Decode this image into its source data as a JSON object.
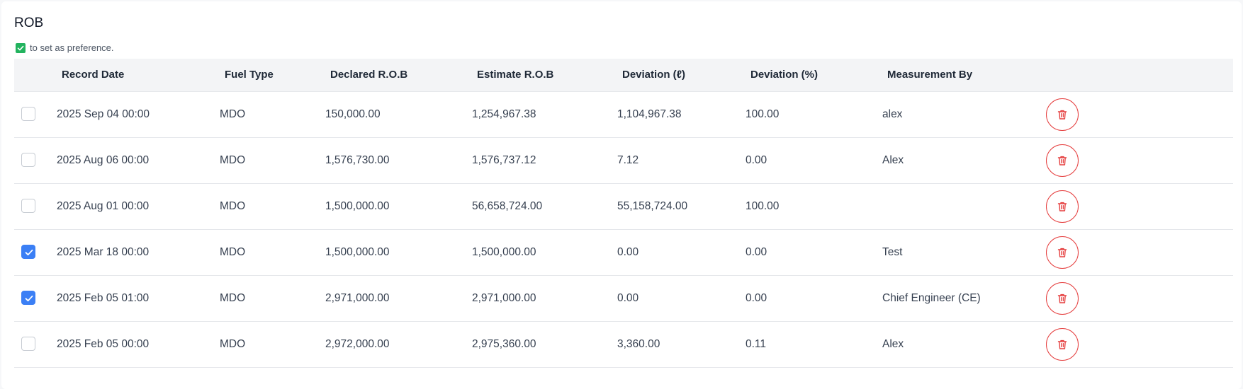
{
  "section": {
    "title": "ROB",
    "hint": "to set as preference."
  },
  "columns": {
    "record_date": "Record Date",
    "fuel_type": "Fuel Type",
    "declared_rob": "Declared R.O.B",
    "estimate_rob": "Estimate R.O.B",
    "deviation_l": "Deviation (ℓ)",
    "deviation_pct": "Deviation (%)",
    "measurement_by": "Measurement By"
  },
  "rows": [
    {
      "checked": false,
      "record_date": "2025 Sep 04 00:00",
      "fuel_type": "MDO",
      "declared_rob": "150,000.00",
      "estimate_rob": "1,254,967.38",
      "deviation_l": "1,104,967.38",
      "deviation_pct": "100.00",
      "measurement_by": "alex"
    },
    {
      "checked": false,
      "record_date": "2025 Aug 06 00:00",
      "fuel_type": "MDO",
      "declared_rob": "1,576,730.00",
      "estimate_rob": "1,576,737.12",
      "deviation_l": "7.12",
      "deviation_pct": "0.00",
      "measurement_by": "Alex"
    },
    {
      "checked": false,
      "record_date": "2025 Aug 01 00:00",
      "fuel_type": "MDO",
      "declared_rob": "1,500,000.00",
      "estimate_rob": "56,658,724.00",
      "deviation_l": "55,158,724.00",
      "deviation_pct": "100.00",
      "measurement_by": ""
    },
    {
      "checked": true,
      "record_date": "2025 Mar 18 00:00",
      "fuel_type": "MDO",
      "declared_rob": "1,500,000.00",
      "estimate_rob": "1,500,000.00",
      "deviation_l": "0.00",
      "deviation_pct": "0.00",
      "measurement_by": "Test"
    },
    {
      "checked": true,
      "record_date": "2025 Feb 05 01:00",
      "fuel_type": "MDO",
      "declared_rob": "2,971,000.00",
      "estimate_rob": "2,971,000.00",
      "deviation_l": "0.00",
      "deviation_pct": "0.00",
      "measurement_by": "Chief Engineer (CE)"
    },
    {
      "checked": false,
      "record_date": "2025 Feb 05 00:00",
      "fuel_type": "MDO",
      "declared_rob": "2,972,000.00",
      "estimate_rob": "2,975,360.00",
      "deviation_l": "3,360.00",
      "deviation_pct": "0.11",
      "measurement_by": "Alex"
    }
  ],
  "colors": {
    "checkbox_checked": "#3b7ff5",
    "delete_accent": "#e53e3e",
    "hint_check": "#22b35e",
    "header_bg": "#f3f4f6"
  },
  "icons": {
    "row_action": "trash-icon",
    "checkbox_mark": "check-icon"
  }
}
